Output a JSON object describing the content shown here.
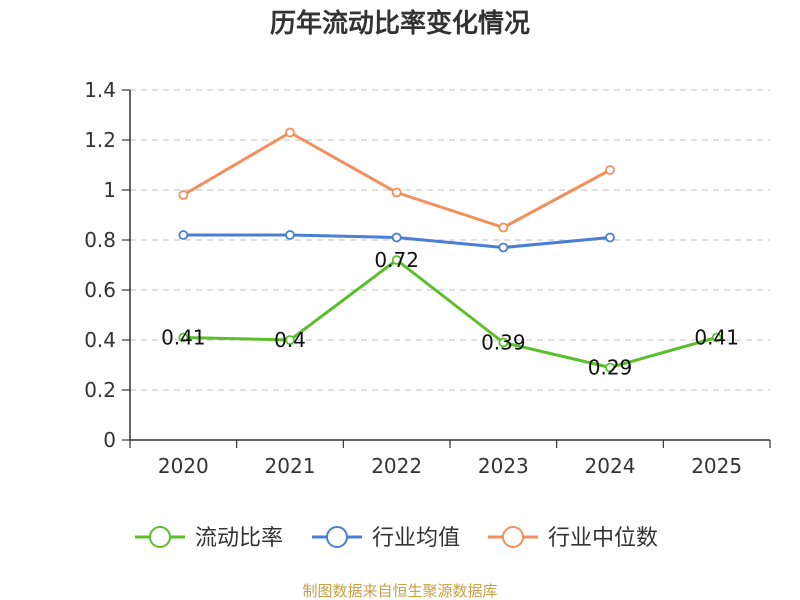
{
  "chart_data": {
    "type": "line",
    "title": "历年流动比率变化情况",
    "categories": [
      "2020",
      "2021",
      "2022",
      "2023",
      "2024",
      "2025"
    ],
    "ylim": [
      0,
      1.4
    ],
    "yticks": [
      "0",
      "0.2",
      "0.4",
      "0.6",
      "0.8",
      "1",
      "1.2",
      "1.4"
    ],
    "grid": true,
    "legend_position": "bottom",
    "series": [
      {
        "name": "流动比率",
        "color": "#5bbf2b",
        "values": [
          0.41,
          0.4,
          0.72,
          0.39,
          0.29,
          0.41
        ],
        "labels": [
          "0.41",
          "0.4",
          "0.72",
          "0.39",
          "0.29",
          "0.41"
        ]
      },
      {
        "name": "行业均值",
        "color": "#4a7fd6",
        "values": [
          0.82,
          0.82,
          0.81,
          0.77,
          0.81,
          null
        ]
      },
      {
        "name": "行业中位数",
        "color": "#f28f5c",
        "values": [
          0.98,
          1.23,
          0.99,
          0.85,
          1.08,
          null
        ]
      }
    ],
    "source": "制图数据来自恒生聚源数据库"
  }
}
